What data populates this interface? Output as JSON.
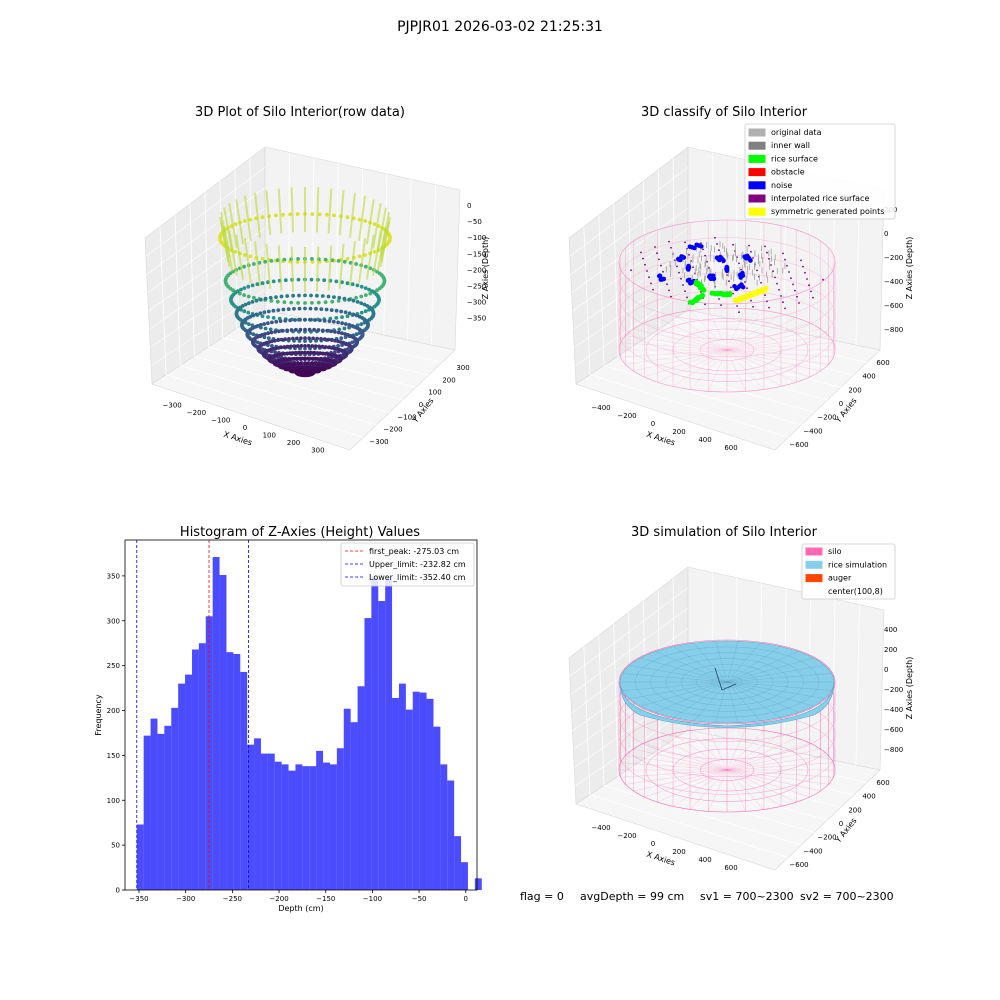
{
  "suptitle": "PJPJR01 2026-03-02 21:25:31",
  "footer": {
    "flag": "flag = 0",
    "avg_depth": "avgDepth = 99 cm",
    "sv1": "sv1 = 700~2300",
    "sv2": "sv2 = 700~2300"
  },
  "chart_data": [
    {
      "type": "scatter",
      "subtype": "3d-scatter",
      "title": "3D Plot of Silo Interior(row data)",
      "xlabel": "X Axies",
      "ylabel": "Y Axies",
      "zlabel": "Z Axies (Depth)",
      "xticks": [
        "−300",
        "−200",
        "−100",
        "0",
        "100",
        "200",
        "300"
      ],
      "yticks": [
        "−300",
        "−200",
        "−100",
        "0",
        "100",
        "200",
        "300"
      ],
      "zticks": [
        "0",
        "−50",
        "−100",
        "−150",
        "−200",
        "−250",
        "−300",
        "−350"
      ],
      "xlim": [
        -350,
        350
      ],
      "ylim": [
        -350,
        350
      ],
      "zlim": [
        -370,
        10
      ],
      "colormap": "viridis",
      "grid": true
    },
    {
      "type": "scatter",
      "subtype": "3d-classification",
      "title": "3D classify of Silo Interior",
      "xlabel": "X Axies",
      "ylabel": "Y Axies",
      "zlabel": "Z Axies (Depth)",
      "xticks": [
        "−400",
        "−200",
        "0",
        "200",
        "400",
        "600"
      ],
      "yticks": [
        "−600",
        "−400",
        "−200",
        "0",
        "200",
        "400",
        "600"
      ],
      "zticks": [
        "200",
        "0",
        "−200",
        "−400",
        "−600",
        "−800"
      ],
      "legend_position": "top-right",
      "legend": [
        {
          "label": "original data",
          "color": "#b0b0b0"
        },
        {
          "label": "inner wall",
          "color": "#808080"
        },
        {
          "label": "rice surface",
          "color": "#00ff00"
        },
        {
          "label": "obstacle",
          "color": "#ff0000"
        },
        {
          "label": "noise",
          "color": "#0000ff"
        },
        {
          "label": "interpolated rice surface",
          "color": "#800080"
        },
        {
          "label": "symmetric generated points",
          "color": "#ffff00"
        }
      ],
      "grid": true
    },
    {
      "type": "bar",
      "subtype": "histogram",
      "title": "Histogram of Z-Axies (Height) Values",
      "xlabel": "Depth (cm)",
      "ylabel": "Frequency",
      "xlim": [
        -365,
        12
      ],
      "ylim": [
        0,
        390
      ],
      "xticks": [
        -350,
        -300,
        -250,
        -200,
        -150,
        -100,
        -50,
        0
      ],
      "yticks": [
        0,
        50,
        100,
        150,
        200,
        250,
        300,
        350
      ],
      "bar_color": "#0000ff",
      "bin_start": -352.4,
      "bin_width": 7.39,
      "values": [
        73,
        172,
        191,
        174,
        183,
        203,
        230,
        240,
        268,
        275,
        305,
        371,
        351,
        265,
        263,
        243,
        162,
        169,
        152,
        152,
        143,
        140,
        133,
        140,
        138,
        138,
        155,
        142,
        140,
        158,
        202,
        187,
        227,
        303,
        350,
        322,
        346,
        214,
        230,
        201,
        221,
        220,
        213,
        182,
        140,
        122,
        60,
        31,
        0,
        13
      ],
      "vlines": [
        {
          "label": "first_peak: -275.03 cm",
          "x": -275.03,
          "color": "#ff0000"
        },
        {
          "label": "Upper_limit: -232.82 cm",
          "x": -232.82,
          "color": "#0000ff"
        },
        {
          "label": "Lower_limit: -352.40 cm",
          "x": -352.4,
          "color": "#0000ff"
        }
      ],
      "legend_position": "top-right"
    },
    {
      "type": "area",
      "subtype": "3d-surface",
      "title": "3D simulation of Silo Interior",
      "xlabel": "X Axies",
      "ylabel": "Y Axies",
      "zlabel": "Z Axies (Depth)",
      "xticks": [
        "−400",
        "−200",
        "0",
        "200",
        "400",
        "600"
      ],
      "yticks": [
        "−600",
        "−400",
        "−200",
        "0",
        "200",
        "400",
        "600"
      ],
      "zticks": [
        "400",
        "200",
        "0",
        "−200",
        "−400",
        "−600",
        "−800"
      ],
      "legend_position": "top-right",
      "legend": [
        {
          "label": "silo",
          "color": "#ff69b4"
        },
        {
          "label": "rice simulation",
          "color": "#87ceeb"
        },
        {
          "label": "auger",
          "color": "#ff4500"
        },
        {
          "label": "center(100,8)",
          "color": "#ffffff"
        }
      ],
      "grid": true
    }
  ]
}
